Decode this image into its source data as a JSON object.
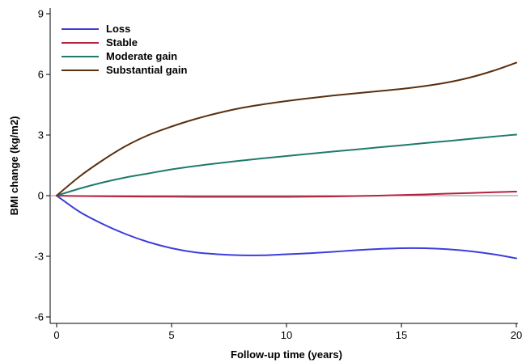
{
  "chart_data": {
    "type": "line",
    "title": "",
    "xlabel": "Follow-up time (years)",
    "ylabel": "BMI change (kg/m2)",
    "xlim": [
      0,
      20
    ],
    "ylim": [
      -6,
      9
    ],
    "xticks": [
      0,
      5,
      10,
      15,
      20
    ],
    "yticks": [
      -6,
      -3,
      0,
      3,
      6,
      9
    ],
    "grid": false,
    "reference_line_y": 0,
    "legend_position": "top-left",
    "x": [
      0,
      1,
      2,
      3,
      4,
      5,
      6,
      7,
      8,
      9,
      10,
      11,
      12,
      13,
      14,
      15,
      16,
      17,
      18,
      19,
      20
    ],
    "series": [
      {
        "name": "Loss",
        "color": "#3d3ddb",
        "values": [
          0,
          -0.8,
          -1.4,
          -1.9,
          -2.3,
          -2.6,
          -2.8,
          -2.9,
          -2.95,
          -2.95,
          -2.9,
          -2.85,
          -2.78,
          -2.7,
          -2.64,
          -2.6,
          -2.6,
          -2.65,
          -2.75,
          -2.9,
          -3.1
        ]
      },
      {
        "name": "Stable",
        "color": "#b5223f",
        "values": [
          0,
          -0.02,
          -0.03,
          -0.04,
          -0.05,
          -0.05,
          -0.06,
          -0.06,
          -0.06,
          -0.06,
          -0.06,
          -0.05,
          -0.04,
          -0.02,
          0,
          0.03,
          0.06,
          0.1,
          0.13,
          0.17,
          0.2
        ]
      },
      {
        "name": "Moderate gain",
        "color": "#1f7a6b",
        "values": [
          0,
          0.35,
          0.65,
          0.9,
          1.1,
          1.3,
          1.46,
          1.6,
          1.73,
          1.85,
          1.96,
          2.07,
          2.18,
          2.28,
          2.39,
          2.49,
          2.6,
          2.7,
          2.81,
          2.92,
          3.02
        ]
      },
      {
        "name": "Substantial gain",
        "color": "#5a2f0e",
        "values": [
          0,
          0.95,
          1.75,
          2.45,
          3.0,
          3.42,
          3.78,
          4.08,
          4.33,
          4.52,
          4.68,
          4.82,
          4.95,
          5.06,
          5.17,
          5.28,
          5.42,
          5.6,
          5.85,
          6.18,
          6.58
        ]
      }
    ]
  }
}
